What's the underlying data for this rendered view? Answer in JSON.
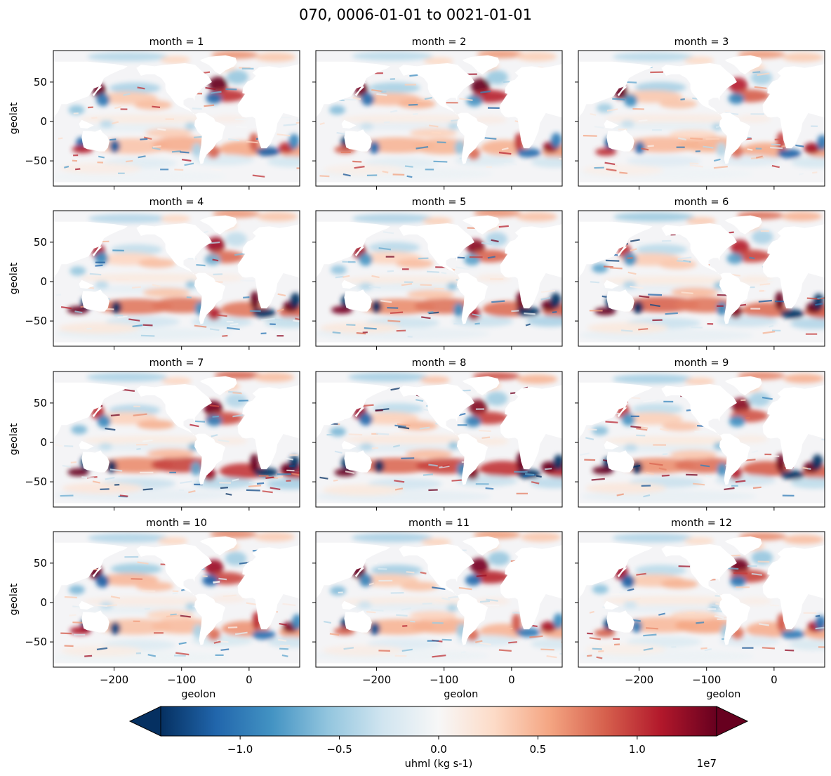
{
  "chart_data": {
    "type": "heatmap",
    "title": "070, 0006-01-01 to 0021-01-01",
    "variable": "uhml",
    "xlabel": "geolon",
    "ylabel": "geolat",
    "xlim": [
      -290,
      75
    ],
    "ylim": [
      -82,
      90
    ],
    "xticks": [
      -200,
      -100,
      0
    ],
    "xtick_labels": [
      "−200",
      "−100",
      "0"
    ],
    "yticks": [
      -50,
      0,
      50
    ],
    "ytick_labels": [
      "−50",
      "0",
      "50"
    ],
    "facet_titles": [
      "month = 1",
      "month = 2",
      "month = 3",
      "month = 4",
      "month = 5",
      "month = 6",
      "month = 7",
      "month = 8",
      "month = 9",
      "month = 10",
      "month = 11",
      "month = 12"
    ],
    "facet_intensity": [
      0.95,
      0.95,
      0.9,
      1.0,
      1.05,
      1.1,
      1.15,
      1.15,
      1.1,
      1.0,
      0.95,
      0.95
    ],
    "colorbar": {
      "label": "uhml (kg s-1)",
      "scale_label": "1e7",
      "range": [
        -1.4,
        1.4
      ],
      "ticks": [
        -1.0,
        -0.5,
        0.0,
        0.5,
        1.0
      ],
      "tick_labels": [
        "−1.0",
        "−0.5",
        "0.0",
        "0.5",
        "1.0"
      ],
      "extend": "both",
      "colormap": "RdBu_r",
      "colors": [
        "#053061",
        "#2166ac",
        "#4393c3",
        "#92c5de",
        "#d1e5f0",
        "#f7f7f7",
        "#fddbc7",
        "#f4a582",
        "#d6604d",
        "#b2182b",
        "#67001f"
      ]
    }
  }
}
